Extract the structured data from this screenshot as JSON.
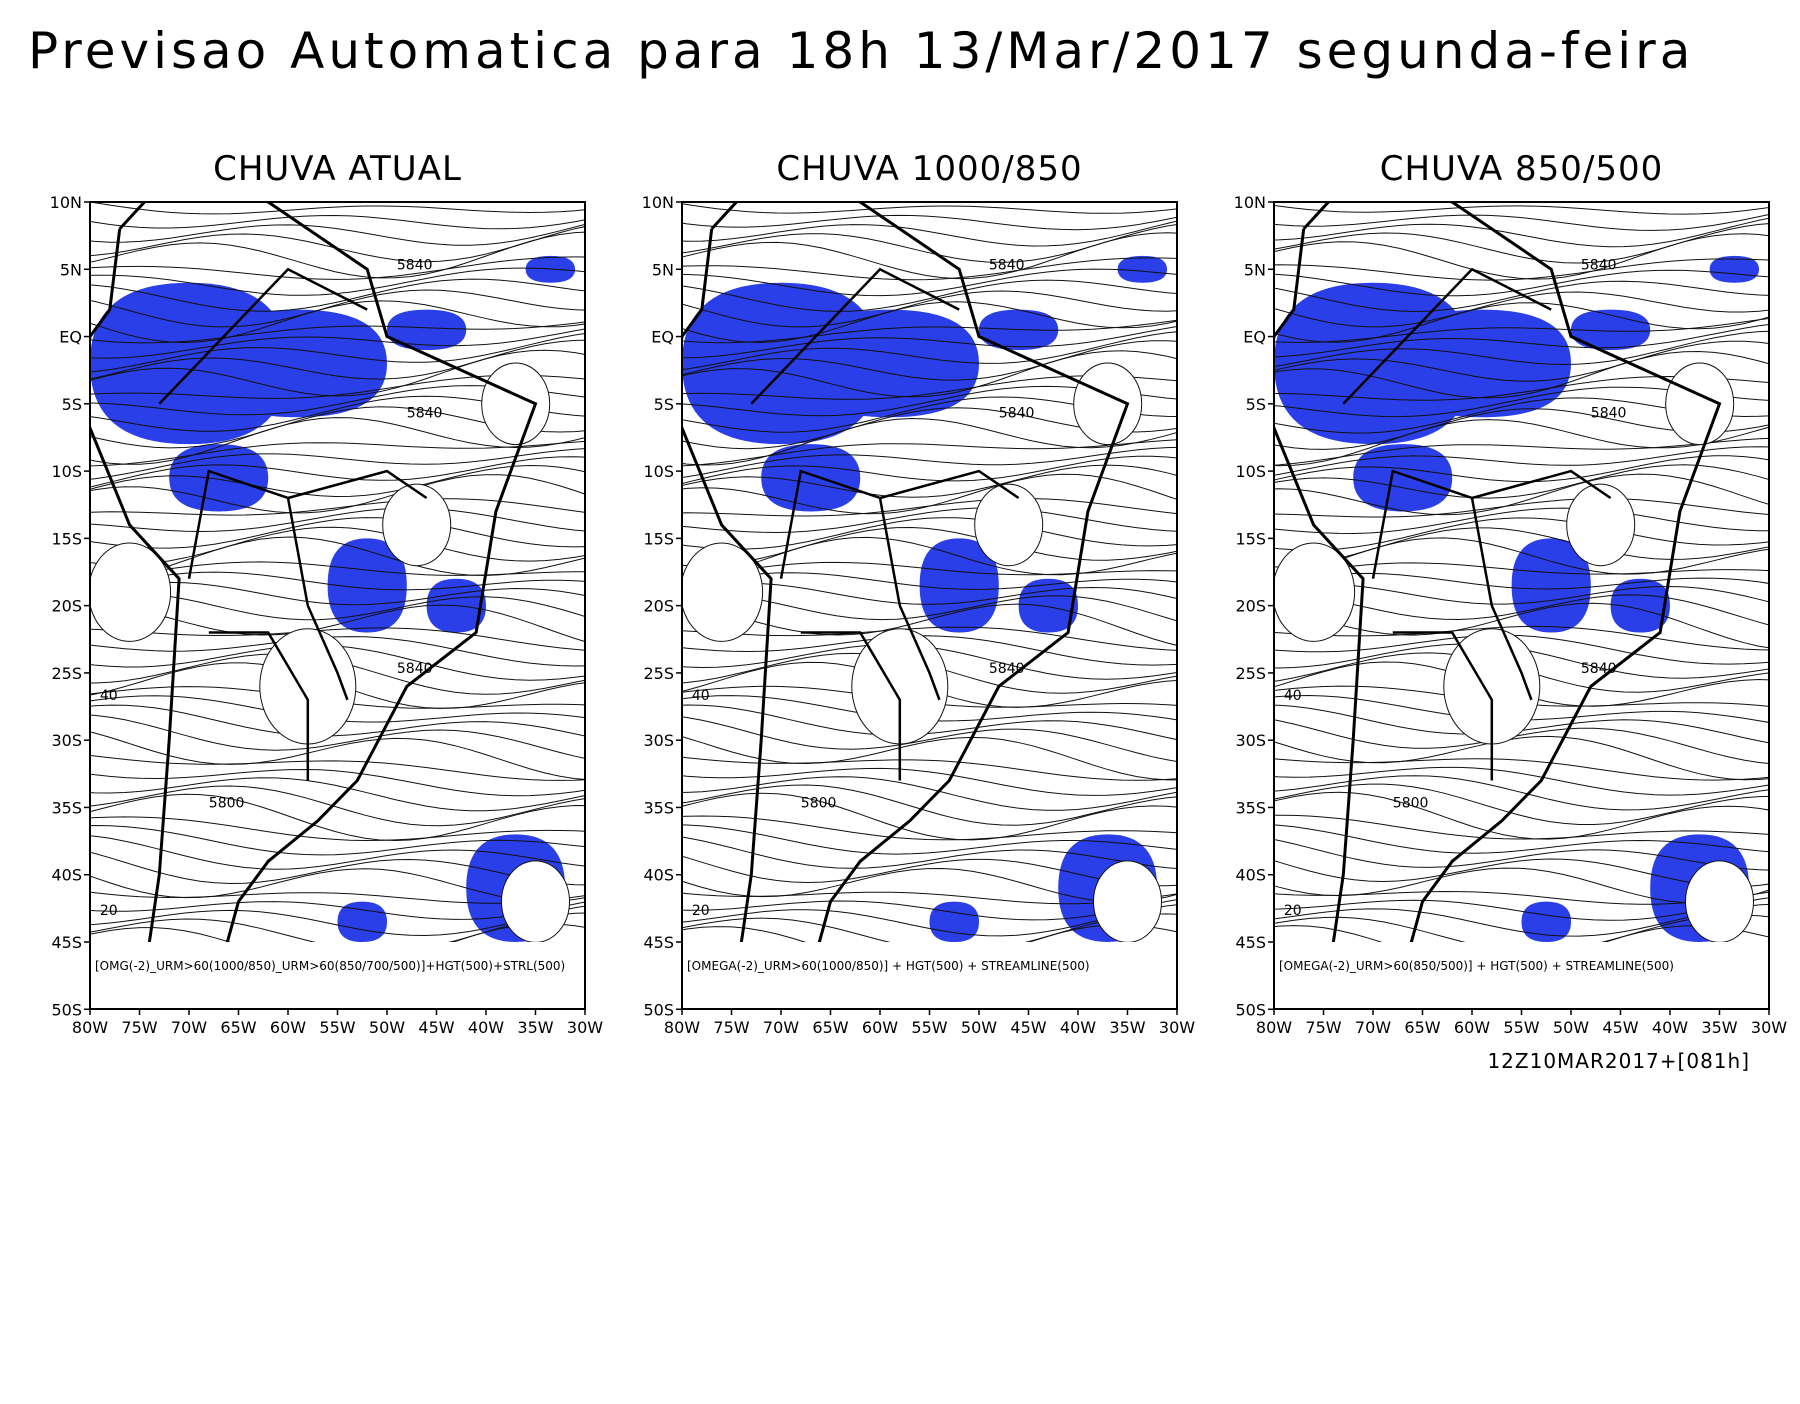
{
  "title": "Previsao Automatica para 18h 13/Mar/2017 segunda-feira",
  "panels": [
    {
      "title": "CHUVA ATUAL",
      "legend": "[OMG(-2)_URM>60(1000/850)_URM>60(850/700/500)]+HGT(500)+STRL(500)",
      "contour_labels": [
        "5840",
        "5840",
        "5800",
        "5840",
        "20",
        "40"
      ]
    },
    {
      "title": "CHUVA 1000/850",
      "legend": "[OMEGA(-2)_URM>60(1000/850)] + HGT(500) + STREAMLINE(500)",
      "contour_labels": [
        "5840",
        "5840",
        "5800",
        "5840",
        "20",
        "40"
      ]
    },
    {
      "title": "CHUVA 850/500",
      "legend": "[OMEGA(-2)_URM>60(850/500)] + HGT(500) + STREAMLINE(500)",
      "contour_labels": [
        "5840",
        "5840",
        "5800",
        "5840",
        "20",
        "40"
      ]
    }
  ],
  "lat_labels": [
    "10N",
    "5N",
    "EQ",
    "5S",
    "10S",
    "15S",
    "20S",
    "25S",
    "30S",
    "35S",
    "40S",
    "45S",
    "50S"
  ],
  "lon_labels": [
    "80W",
    "75W",
    "70W",
    "65W",
    "60W",
    "55W",
    "50W",
    "45W",
    "40W",
    "35W",
    "30W"
  ],
  "footer": "12Z10MAR2017+[081h]"
}
